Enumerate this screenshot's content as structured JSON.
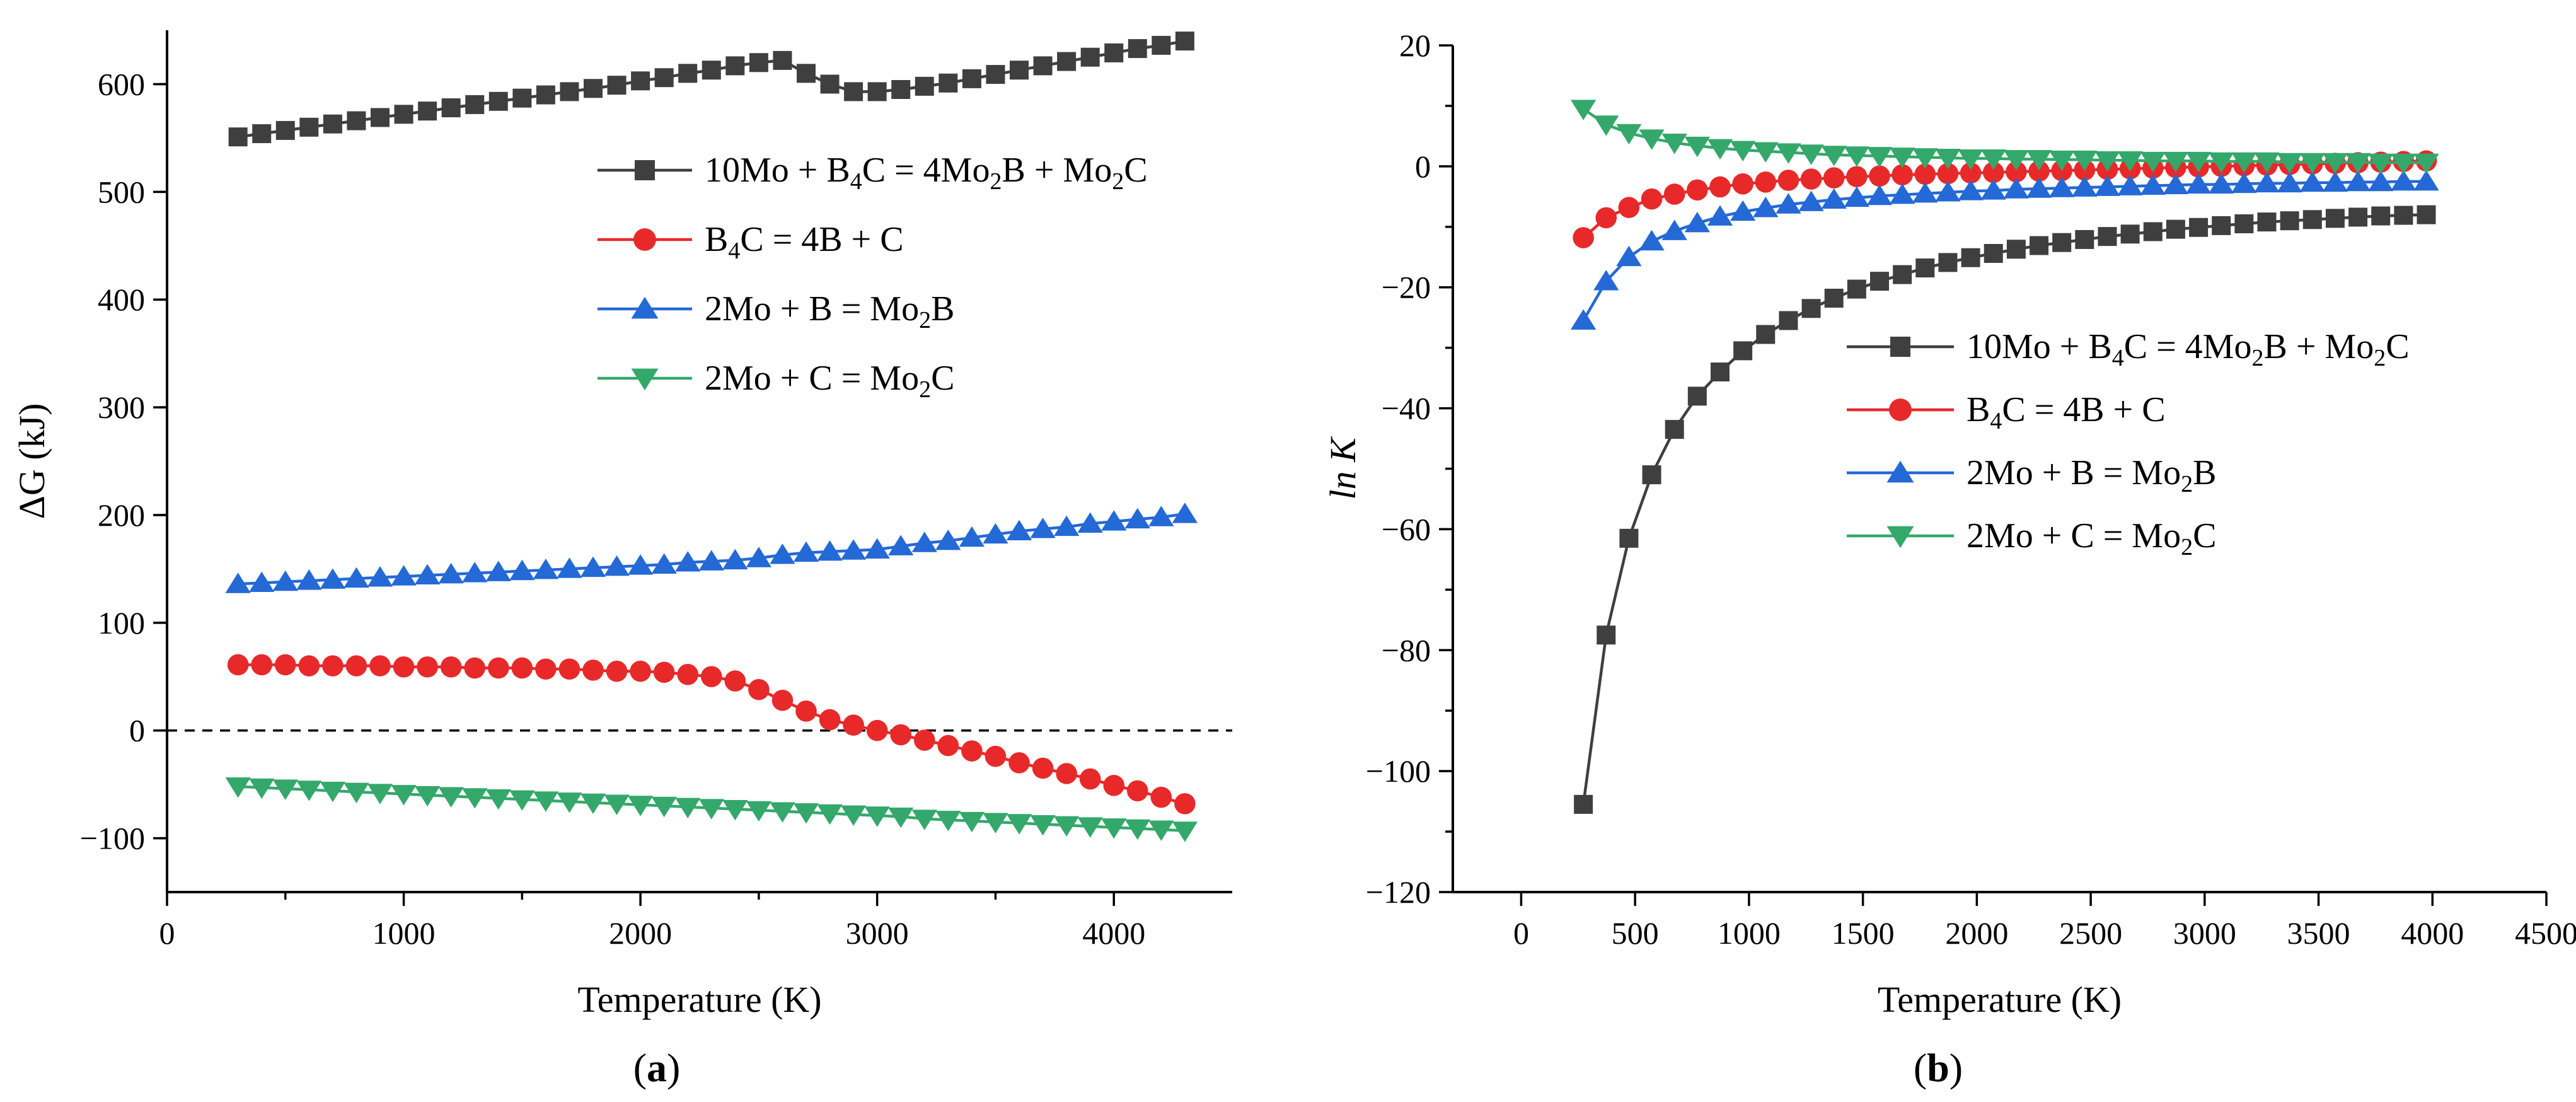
{
  "figure": {
    "panel_a_label": "a",
    "panel_b_label": "b"
  },
  "chart_data": [
    {
      "id": "a",
      "type": "line",
      "markers": true,
      "xlabel": "Temperature (K)",
      "ylabel": "ΔG (kJ)",
      "xlim": [
        0,
        4500
      ],
      "ylim": [
        -150,
        650
      ],
      "xticks": [
        0,
        1000,
        2000,
        3000,
        4000
      ],
      "yticks": [
        -100,
        0,
        100,
        200,
        300,
        400,
        500,
        600
      ],
      "xtick_labels": [
        "0",
        "1000",
        "2000",
        "3000",
        "4000"
      ],
      "ytick_labels": [
        "−100",
        "0",
        "100",
        "200",
        "300",
        "400",
        "500",
        "600"
      ],
      "reference_line": {
        "y": 0,
        "style": "dashed"
      },
      "legend_position": "top-right",
      "x": [
        300,
        400,
        500,
        600,
        700,
        800,
        900,
        1000,
        1100,
        1200,
        1300,
        1400,
        1500,
        1600,
        1700,
        1800,
        1900,
        2000,
        2100,
        2200,
        2300,
        2400,
        2500,
        2600,
        2700,
        2800,
        2900,
        3000,
        3100,
        3200,
        3300,
        3400,
        3500,
        3600,
        3700,
        3800,
        3900,
        4000,
        4100,
        4200,
        4300
      ],
      "series": [
        {
          "name": "10Mo + B4C = 4Mo2B + Mo2C",
          "label_parts": [
            [
              "10Mo + B",
              false
            ],
            [
              "4",
              true
            ],
            [
              "C = 4Mo",
              false
            ],
            [
              "2",
              true
            ],
            [
              "B + Mo",
              false
            ],
            [
              "2",
              true
            ],
            [
              "C",
              false
            ]
          ],
          "color": "#3f3f3f",
          "marker": "square",
          "values": [
            551,
            554,
            557,
            560,
            563,
            566,
            569,
            572,
            575,
            578,
            581,
            584,
            587,
            590,
            593,
            596,
            599,
            603,
            606,
            610,
            613,
            617,
            620,
            622,
            610,
            600,
            593,
            593,
            595,
            598,
            601,
            605,
            609,
            613,
            617,
            621,
            625,
            629,
            633,
            636,
            640
          ]
        },
        {
          "name": "B4C = 4B + C",
          "label_parts": [
            [
              "B",
              false
            ],
            [
              "4",
              true
            ],
            [
              "C = 4B + C",
              false
            ]
          ],
          "color": "#e8292a",
          "marker": "circle",
          "values": [
            61,
            61,
            61,
            60,
            60,
            60,
            60,
            59,
            59,
            59,
            58,
            58,
            58,
            57,
            57,
            56,
            55,
            55,
            54,
            52,
            50,
            46,
            38,
            28,
            18,
            10,
            5,
            0,
            -4,
            -9,
            -14,
            -19,
            -24,
            -30,
            -35,
            -40,
            -45,
            -51,
            -56,
            -62,
            -68
          ]
        },
        {
          "name": "2Mo + B = Mo2B",
          "label_parts": [
            [
              "2Mo + B = Mo",
              false
            ],
            [
              "2",
              true
            ],
            [
              "B",
              false
            ]
          ],
          "color": "#2469d6",
          "marker": "triangle-up",
          "values": [
            136,
            137,
            138,
            139,
            140,
            141,
            142,
            143,
            144,
            145,
            146,
            147,
            148,
            149,
            150,
            151,
            152,
            153,
            154,
            156,
            157,
            158,
            160,
            163,
            165,
            166,
            167,
            168,
            171,
            174,
            176,
            179,
            182,
            185,
            187,
            189,
            192,
            194,
            196,
            198,
            201
          ]
        },
        {
          "name": "2Mo + C = Mo2C",
          "label_parts": [
            [
              "2Mo + C = Mo",
              false
            ],
            [
              "2",
              true
            ],
            [
              "C",
              false
            ]
          ],
          "color": "#34a86b",
          "marker": "triangle-down",
          "values": [
            -52,
            -53,
            -54,
            -55,
            -56,
            -57,
            -58,
            -59,
            -60,
            -61,
            -62,
            -63,
            -64,
            -65,
            -66,
            -67,
            -68,
            -69,
            -70,
            -71,
            -72,
            -73,
            -74,
            -75,
            -76,
            -77,
            -78,
            -79,
            -80,
            -82,
            -83,
            -84,
            -85,
            -86,
            -87,
            -88,
            -89,
            -90,
            -91,
            -92,
            -93
          ]
        }
      ]
    },
    {
      "id": "b",
      "type": "line",
      "markers": true,
      "xlabel": "Temperature (K)",
      "ylabel": "ln K",
      "xlim": [
        -300,
        4500
      ],
      "ylim": [
        -120,
        20
      ],
      "xticks": [
        0,
        500,
        1000,
        1500,
        2000,
        2500,
        3000,
        3500,
        4000,
        4500
      ],
      "yticks": [
        -120,
        -100,
        -80,
        -60,
        -40,
        -20,
        0,
        20
      ],
      "xtick_labels": [
        "0",
        "500",
        "1000",
        "1500",
        "2000",
        "2500",
        "3000",
        "3500",
        "4000",
        "4500"
      ],
      "ytick_labels": [
        "−120",
        "−100",
        "−80",
        "−60",
        "−40",
        "−20",
        "0",
        "20"
      ],
      "legend_position": "center-right",
      "x": [
        273,
        373,
        473,
        573,
        673,
        773,
        873,
        973,
        1073,
        1173,
        1273,
        1373,
        1473,
        1573,
        1673,
        1773,
        1873,
        1973,
        2073,
        2173,
        2273,
        2373,
        2473,
        2573,
        2673,
        2773,
        2873,
        2973,
        3073,
        3173,
        3273,
        3373,
        3473,
        3573,
        3673,
        3773,
        3873,
        3973
      ],
      "series": [
        {
          "name": "10Mo + B4C = 4Mo2B + Mo2C",
          "label_parts": [
            [
              "10Mo + B",
              false
            ],
            [
              "4",
              true
            ],
            [
              "C = 4Mo",
              false
            ],
            [
              "2",
              true
            ],
            [
              "B + Mo",
              false
            ],
            [
              "2",
              true
            ],
            [
              "C",
              false
            ]
          ],
          "color": "#3f3f3f",
          "marker": "square",
          "values": [
            -105.5,
            -77.5,
            -61.5,
            -51,
            -43.5,
            -38,
            -34,
            -30.5,
            -27.8,
            -25.5,
            -23.5,
            -21.8,
            -20.3,
            -19,
            -17.9,
            -16.8,
            -15.9,
            -15.1,
            -14.4,
            -13.7,
            -13.1,
            -12.6,
            -12.1,
            -11.6,
            -11.2,
            -10.8,
            -10.4,
            -10.1,
            -9.8,
            -9.5,
            -9.2,
            -9,
            -8.8,
            -8.6,
            -8.4,
            -8.2,
            -8.1,
            -8
          ]
        },
        {
          "name": "B4C = 4B + C",
          "label_parts": [
            [
              "B",
              false
            ],
            [
              "4",
              true
            ],
            [
              "C = 4B + C",
              false
            ]
          ],
          "color": "#e8292a",
          "marker": "circle",
          "values": [
            -11.8,
            -8.5,
            -6.8,
            -5.4,
            -4.6,
            -3.9,
            -3.4,
            -2.9,
            -2.6,
            -2.3,
            -2.1,
            -1.9,
            -1.7,
            -1.6,
            -1.4,
            -1.3,
            -1.2,
            -1.1,
            -1,
            -0.9,
            -0.8,
            -0.7,
            -0.6,
            -0.5,
            -0.4,
            -0.3,
            -0.2,
            -0.1,
            0,
            0.1,
            0.2,
            0.3,
            0.4,
            0.5,
            0.6,
            0.7,
            0.8,
            0.9
          ]
        },
        {
          "name": "2Mo + B = Mo2B",
          "label_parts": [
            [
              "2Mo + B = Mo",
              false
            ],
            [
              "2",
              true
            ],
            [
              "B",
              false
            ]
          ],
          "color": "#2469d6",
          "marker": "triangle-up",
          "values": [
            -25.5,
            -19,
            -15,
            -12.4,
            -10.7,
            -9.4,
            -8.3,
            -7.5,
            -6.9,
            -6.3,
            -5.9,
            -5.5,
            -5.2,
            -4.9,
            -4.7,
            -4.5,
            -4.3,
            -4.1,
            -4,
            -3.8,
            -3.7,
            -3.6,
            -3.5,
            -3.4,
            -3.3,
            -3.2,
            -3.1,
            -3,
            -3,
            -2.9,
            -2.8,
            -2.8,
            -2.7,
            -2.7,
            -2.6,
            -2.6,
            -2.5,
            -2.5
          ]
        },
        {
          "name": "2Mo + C = Mo2C",
          "label_parts": [
            [
              "2Mo + C = Mo",
              false
            ],
            [
              "2",
              true
            ],
            [
              "C",
              false
            ]
          ],
          "color": "#34a86b",
          "marker": "triangle-down",
          "values": [
            9.5,
            6.9,
            5.5,
            4.6,
            3.9,
            3.4,
            3,
            2.7,
            2.5,
            2.3,
            2.1,
            1.9,
            1.8,
            1.7,
            1.6,
            1.5,
            1.4,
            1.3,
            1.3,
            1.2,
            1.2,
            1.1,
            1.1,
            1,
            1,
            0.9,
            0.9,
            0.9,
            0.8,
            0.8,
            0.8,
            0.7,
            0.7,
            0.7,
            0.7,
            0.6,
            0.6,
            0.6
          ]
        }
      ]
    }
  ]
}
